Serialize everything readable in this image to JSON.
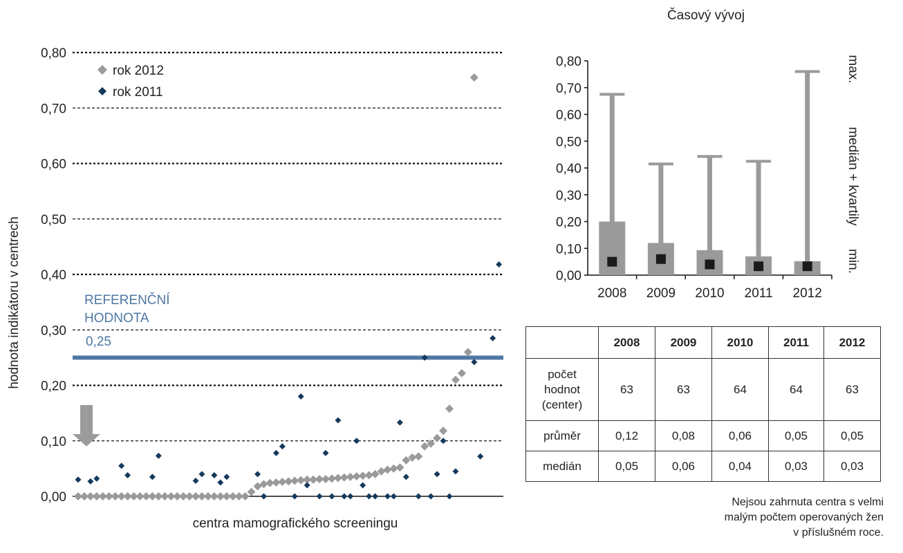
{
  "chart_data": [
    {
      "type": "scatter",
      "title": "",
      "xlabel": "centra mamografického screeningu",
      "ylabel": "hodnota indikátoru v centrech",
      "ylim": [
        0,
        0.8
      ],
      "yticks": [
        "0,00",
        "0,10",
        "0,20",
        "0,30",
        "0,40",
        "0,50",
        "0,60",
        "0,70",
        "0,80"
      ],
      "legend_position": "top-left",
      "reference_line": {
        "value": 0.25,
        "label_lines": [
          "REFERENČNÍ",
          "HODNOTA"
        ],
        "value_label": "0,25",
        "color": "#4f77a3"
      },
      "arrow_marker": {
        "value": 0.1,
        "color": "#9b9b9b"
      },
      "series": [
        {
          "name": "rok 2012",
          "color": "#9a9a9a",
          "values": [
            0,
            0,
            0,
            0,
            0,
            0,
            0,
            0,
            0,
            0,
            0,
            0,
            0,
            0,
            0,
            0,
            0,
            0,
            0,
            0,
            0,
            0,
            0,
            0,
            0,
            0,
            0,
            0,
            0.008,
            0.018,
            0.022,
            0.024,
            0.025,
            0.026,
            0.027,
            0.028,
            0.029,
            0.03,
            0.03,
            0.031,
            0.031,
            0.032,
            0.033,
            0.034,
            0.035,
            0.036,
            0.037,
            0.038,
            0.04,
            0.045,
            0.048,
            0.05,
            0.052,
            0.065,
            0.07,
            0.072,
            0.09,
            0.095,
            0.105,
            0.118,
            0.158,
            0.21,
            0.222,
            0.26,
            0.755
          ]
        },
        {
          "name": "rok 2011",
          "color": "#143a5c",
          "points": [
            [
              0,
              0.03
            ],
            [
              2,
              0.027
            ],
            [
              3,
              0.032
            ],
            [
              7,
              0.055
            ],
            [
              8,
              0.038
            ],
            [
              12,
              0.035
            ],
            [
              13,
              0.073
            ],
            [
              19,
              0.028
            ],
            [
              20,
              0.04
            ],
            [
              22,
              0.038
            ],
            [
              23,
              0.025
            ],
            [
              24,
              0.035
            ],
            [
              29,
              0.04
            ],
            [
              30,
              0
            ],
            [
              32,
              0.078
            ],
            [
              33,
              0.09
            ],
            [
              35,
              0
            ],
            [
              36,
              0.18
            ],
            [
              37,
              0.02
            ],
            [
              39,
              0
            ],
            [
              40,
              0.078
            ],
            [
              41,
              0
            ],
            [
              42,
              0.137
            ],
            [
              43,
              0
            ],
            [
              44,
              0
            ],
            [
              45,
              0.1
            ],
            [
              46,
              0.02
            ],
            [
              47,
              0
            ],
            [
              48,
              0
            ],
            [
              50,
              0
            ],
            [
              51,
              0
            ],
            [
              52,
              0.133
            ],
            [
              53,
              0.035
            ],
            [
              55,
              0
            ],
            [
              56,
              0.25
            ],
            [
              57,
              0
            ],
            [
              58,
              0.04
            ],
            [
              59,
              0.1
            ],
            [
              60,
              0
            ],
            [
              61,
              0.045
            ],
            [
              64,
              0.242
            ],
            [
              65,
              0.072
            ],
            [
              67,
              0.285
            ],
            [
              68,
              0.418
            ]
          ]
        }
      ]
    },
    {
      "type": "box",
      "title": "Časový vývoj",
      "categories": [
        "2008",
        "2009",
        "2010",
        "2011",
        "2012"
      ],
      "ylim": [
        0,
        0.8
      ],
      "yticks": [
        "0,00",
        "0,10",
        "0,20",
        "0,30",
        "0,40",
        "0,50",
        "0,60",
        "0,70",
        "0,80"
      ],
      "right_labels": [
        "min.",
        "medián + kvartily",
        "max."
      ],
      "box_color": "#9a9a9a",
      "median_color": "#1a1a1a",
      "boxes": [
        {
          "min": 0,
          "q1": 0,
          "median": 0.05,
          "q3": 0.2,
          "max": 0.675
        },
        {
          "min": 0,
          "q1": 0,
          "median": 0.06,
          "q3": 0.12,
          "max": 0.415
        },
        {
          "min": 0,
          "q1": 0,
          "median": 0.04,
          "q3": 0.093,
          "max": 0.443
        },
        {
          "min": 0,
          "q1": 0,
          "median": 0.033,
          "q3": 0.07,
          "max": 0.425
        },
        {
          "min": 0,
          "q1": 0,
          "median": 0.033,
          "q3": 0.052,
          "max": 0.76
        }
      ]
    }
  ],
  "table": {
    "headers": [
      "2008",
      "2009",
      "2010",
      "2011",
      "2012"
    ],
    "rows": [
      {
        "label": "počet\nhodnot\n(center)",
        "values": [
          "63",
          "63",
          "64",
          "64",
          "63"
        ]
      },
      {
        "label": "průměr",
        "values": [
          "0,12",
          "0,08",
          "0,06",
          "0,05",
          "0,05"
        ]
      },
      {
        "label": "medián",
        "values": [
          "0,05",
          "0,06",
          "0,04",
          "0,03",
          "0,03"
        ]
      }
    ]
  },
  "footnote": "Nejsou zahrnuta centra s velmi\nmalým počtem operovaných žen\nv příslušném roce."
}
